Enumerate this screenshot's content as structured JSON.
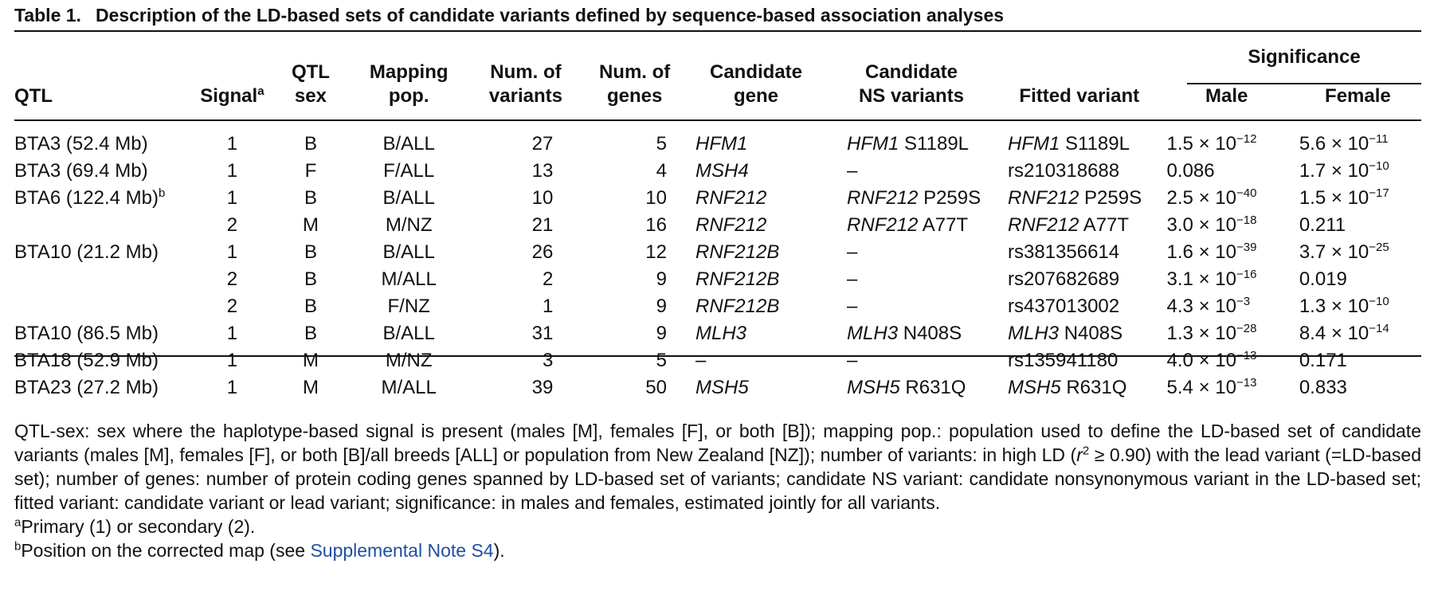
{
  "caption": {
    "label": "Table 1.",
    "text": "Description of the LD-based sets of candidate variants defined by sequence-based association analyses"
  },
  "headers": {
    "qtl": "QTL",
    "signal": "Signal",
    "signal_sup": "a",
    "qtl_sex_1": "QTL",
    "qtl_sex_2": "sex",
    "mapping_1": "Mapping",
    "mapping_2": "pop.",
    "num_var_1": "Num. of",
    "num_var_2": "variants",
    "num_genes_1": "Num. of",
    "num_genes_2": "genes",
    "cand_gene_1": "Candidate",
    "cand_gene_2": "gene",
    "cand_ns_1": "Candidate",
    "cand_ns_2": "NS variants",
    "fitted": "Fitted variant",
    "significance": "Significance",
    "male": "Male",
    "female": "Female"
  },
  "rows": [
    {
      "qtl": "BTA3 (52.4 Mb)",
      "qtl_sup": "",
      "signal": "1",
      "sex": "B",
      "pop": "B/ALL",
      "nvar": "27",
      "ngenes": "5",
      "gene": "HFM1",
      "ns_gene": "HFM1",
      "ns_var": "S1189L",
      "fit_gene": "HFM1",
      "fit_var": "S1189L",
      "male_m": "1.5",
      "male_e": "−12",
      "female_m": "5.6",
      "female_e": "−11"
    },
    {
      "qtl": "BTA3 (69.4 Mb)",
      "qtl_sup": "",
      "signal": "1",
      "sex": "F",
      "pop": "F/ALL",
      "nvar": "13",
      "ngenes": "4",
      "gene": "MSH4",
      "ns_gene": "",
      "ns_var": "–",
      "fit_gene": "",
      "fit_var": "rs210318688",
      "male_m": "0.086",
      "male_e": "",
      "female_m": "1.7",
      "female_e": "−10"
    },
    {
      "qtl": "BTA6 (122.4 Mb)",
      "qtl_sup": "b",
      "signal": "1",
      "sex": "B",
      "pop": "B/ALL",
      "nvar": "10",
      "ngenes": "10",
      "gene": "RNF212",
      "ns_gene": "RNF212",
      "ns_var": "P259S",
      "fit_gene": "RNF212",
      "fit_var": "P259S",
      "male_m": "2.5",
      "male_e": "−40",
      "female_m": "1.5",
      "female_e": "−17"
    },
    {
      "qtl": "",
      "qtl_sup": "",
      "signal": "2",
      "sex": "M",
      "pop": "M/NZ",
      "nvar": "21",
      "ngenes": "16",
      "gene": "RNF212",
      "ns_gene": "RNF212",
      "ns_var": "A77T",
      "fit_gene": "RNF212",
      "fit_var": "A77T",
      "male_m": "3.0",
      "male_e": "−18",
      "female_m": "0.211",
      "female_e": ""
    },
    {
      "qtl": "BTA10 (21.2 Mb)",
      "qtl_sup": "",
      "signal": "1",
      "sex": "B",
      "pop": "B/ALL",
      "nvar": "26",
      "ngenes": "12",
      "gene": "RNF212B",
      "ns_gene": "",
      "ns_var": "–",
      "fit_gene": "",
      "fit_var": "rs381356614",
      "male_m": "1.6",
      "male_e": "−39",
      "female_m": "3.7",
      "female_e": "−25"
    },
    {
      "qtl": "",
      "qtl_sup": "",
      "signal": "2",
      "sex": "B",
      "pop": "M/ALL",
      "nvar": "2",
      "ngenes": "9",
      "gene": "RNF212B",
      "ns_gene": "",
      "ns_var": "–",
      "fit_gene": "",
      "fit_var": "rs207682689",
      "male_m": "3.1",
      "male_e": "−16",
      "female_m": "0.019",
      "female_e": ""
    },
    {
      "qtl": "",
      "qtl_sup": "",
      "signal": "2",
      "sex": "B",
      "pop": "F/NZ",
      "nvar": "1",
      "ngenes": "9",
      "gene": "RNF212B",
      "ns_gene": "",
      "ns_var": "–",
      "fit_gene": "",
      "fit_var": "rs437013002",
      "male_m": "4.3",
      "male_e": "−3",
      "female_m": "1.3",
      "female_e": "−10"
    },
    {
      "qtl": "BTA10 (86.5 Mb)",
      "qtl_sup": "",
      "signal": "1",
      "sex": "B",
      "pop": "B/ALL",
      "nvar": "31",
      "ngenes": "9",
      "gene": "MLH3",
      "ns_gene": "MLH3",
      "ns_var": "N408S",
      "fit_gene": "MLH3",
      "fit_var": "N408S",
      "male_m": "1.3",
      "male_e": "−28",
      "female_m": "8.4",
      "female_e": "−14"
    },
    {
      "qtl": "BTA18 (52.9 Mb)",
      "qtl_sup": "",
      "signal": "1",
      "sex": "M",
      "pop": "M/NZ",
      "nvar": "3",
      "ngenes": "5",
      "gene": "–",
      "ns_gene": "",
      "ns_var": "–",
      "fit_gene": "",
      "fit_var": "rs135941180",
      "male_m": "4.0",
      "male_e": "−13",
      "female_m": "0.171",
      "female_e": ""
    },
    {
      "qtl": "BTA23 (27.2 Mb)",
      "qtl_sup": "",
      "signal": "1",
      "sex": "M",
      "pop": "M/ALL",
      "nvar": "39",
      "ngenes": "50",
      "gene": "MSH5",
      "ns_gene": "MSH5",
      "ns_var": "R631Q",
      "fit_gene": "MSH5",
      "fit_var": "R631Q",
      "male_m": "5.4",
      "male_e": "−13",
      "female_m": "0.833",
      "female_e": ""
    }
  ],
  "times": "×",
  "ten": "10",
  "notes": {
    "main_1": "QTL-sex: sex where the haplotype-based signal is present (males [M], females [F], or both [B]); mapping pop.: population used to define the LD-based set of candidate variants (males [M], females [F], or both [B]/all breeds [ALL] or population from New Zealand [NZ]); number of variants: in high LD (",
    "main_r": "r",
    "main_r_sup": "2",
    "main_2": " ≥ 0.90) with the lead variant (=LD-based set); number of genes: number of protein coding genes spanned by LD-based set of variants; candidate NS variant: candidate nonsynonymous variant in the LD-based set; fitted variant: candidate variant or lead variant; significance: in males and females, estimated jointly for all variants.",
    "a_sup": "a",
    "a_text": "Primary (1) or secondary (2).",
    "b_sup": "b",
    "b_text_1": "Position on the corrected map (see ",
    "b_link": "Supplemental Note S4",
    "b_text_2": ")."
  }
}
